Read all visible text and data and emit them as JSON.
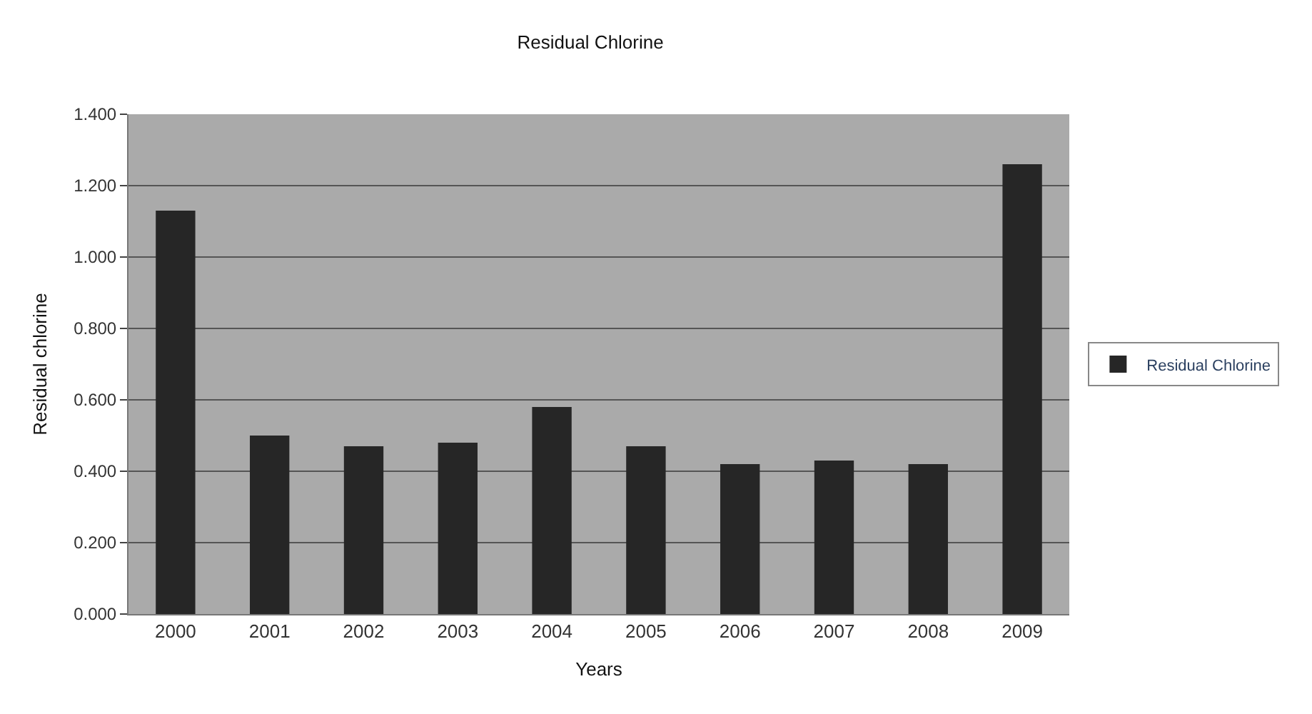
{
  "chart_data": {
    "type": "bar",
    "title": "Residual Chlorine",
    "xlabel": "Years",
    "ylabel": "Residual chlorine",
    "categories": [
      "2000",
      "2001",
      "2002",
      "2003",
      "2004",
      "2005",
      "2006",
      "2007",
      "2008",
      "2009"
    ],
    "series": [
      {
        "name": "Residual Chlorine",
        "color": "#262626",
        "values": [
          1.13,
          0.5,
          0.47,
          0.48,
          0.58,
          0.47,
          0.42,
          0.43,
          0.42,
          1.26
        ]
      }
    ],
    "ylim": [
      0,
      1.4
    ],
    "yticks": [
      {
        "value": 0,
        "label": "0.000"
      },
      {
        "value": 0.2,
        "label": "0.200"
      },
      {
        "value": 0.4,
        "label": "0.400"
      },
      {
        "value": 0.6,
        "label": "0.600"
      },
      {
        "value": 0.8,
        "label": "0.800"
      },
      {
        "value": 1.0,
        "label": "1.000"
      },
      {
        "value": 1.2,
        "label": "1.200"
      },
      {
        "value": 1.4,
        "label": "1.400"
      }
    ],
    "grid": "y",
    "legend": "right"
  }
}
